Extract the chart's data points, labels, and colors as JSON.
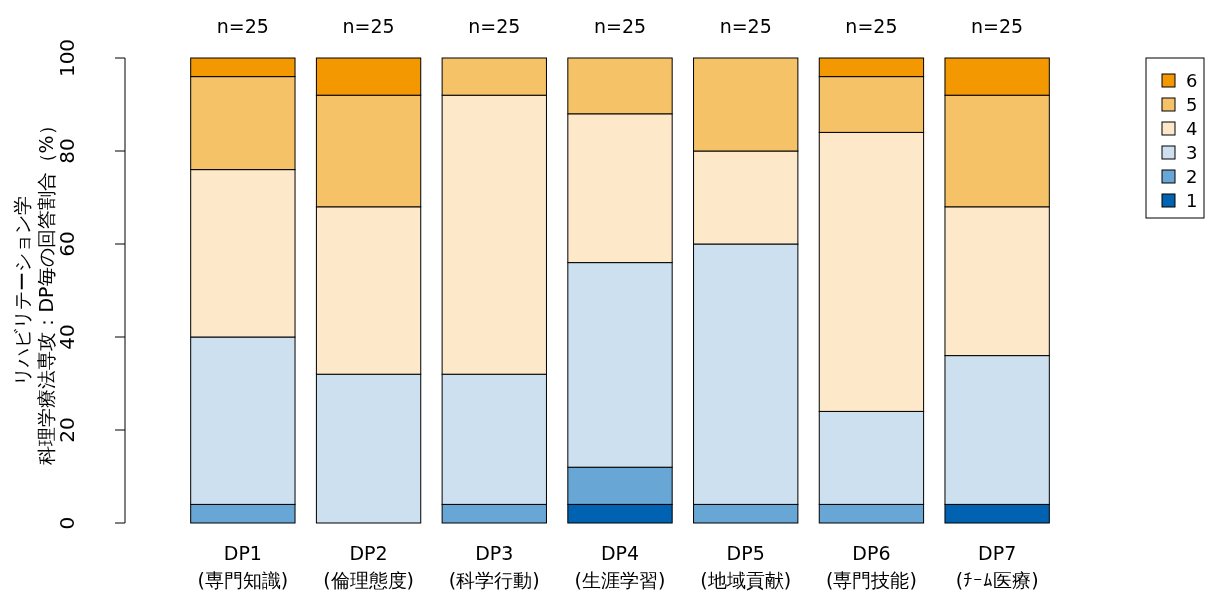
{
  "chart_data": {
    "type": "bar",
    "stacked": true,
    "ylabel": "リハビリテーション学科理学療法専攻：DP毎の回答割合（%）",
    "categories": [
      "DP1\n(専門知識)",
      "DP2\n(倫理態度)",
      "DP3\n(科学行動)",
      "DP4\n(生涯学習)",
      "DP5\n(地域貢献)",
      "DP6\n(専門技能)",
      "DP7\n(ﾁｰﾑ医療)"
    ],
    "series": [
      {
        "name": "1",
        "color": "#0062b1",
        "values": [
          0,
          0,
          0,
          4,
          0,
          0,
          4
        ]
      },
      {
        "name": "2",
        "color": "#68a6d5",
        "values": [
          4,
          0,
          4,
          8,
          4,
          4,
          0
        ]
      },
      {
        "name": "3",
        "color": "#cde0ef",
        "values": [
          36,
          32,
          28,
          44,
          56,
          20,
          32
        ]
      },
      {
        "name": "4",
        "color": "#fde9c9",
        "values": [
          36,
          36,
          60,
          32,
          20,
          60,
          32
        ]
      },
      {
        "name": "5",
        "color": "#f6c267",
        "values": [
          20,
          24,
          8,
          12,
          20,
          12,
          24
        ]
      },
      {
        "name": "6",
        "color": "#f39800",
        "values": [
          4,
          8,
          0,
          0,
          0,
          4,
          8
        ]
      }
    ],
    "ylim": [
      0,
      100
    ],
    "yticks": [
      0,
      20,
      40,
      60,
      80,
      100
    ],
    "annotations": [
      "n=25",
      "n=25",
      "n=25",
      "n=25",
      "n=25",
      "n=25",
      "n=25"
    ],
    "legend": "top right"
  }
}
